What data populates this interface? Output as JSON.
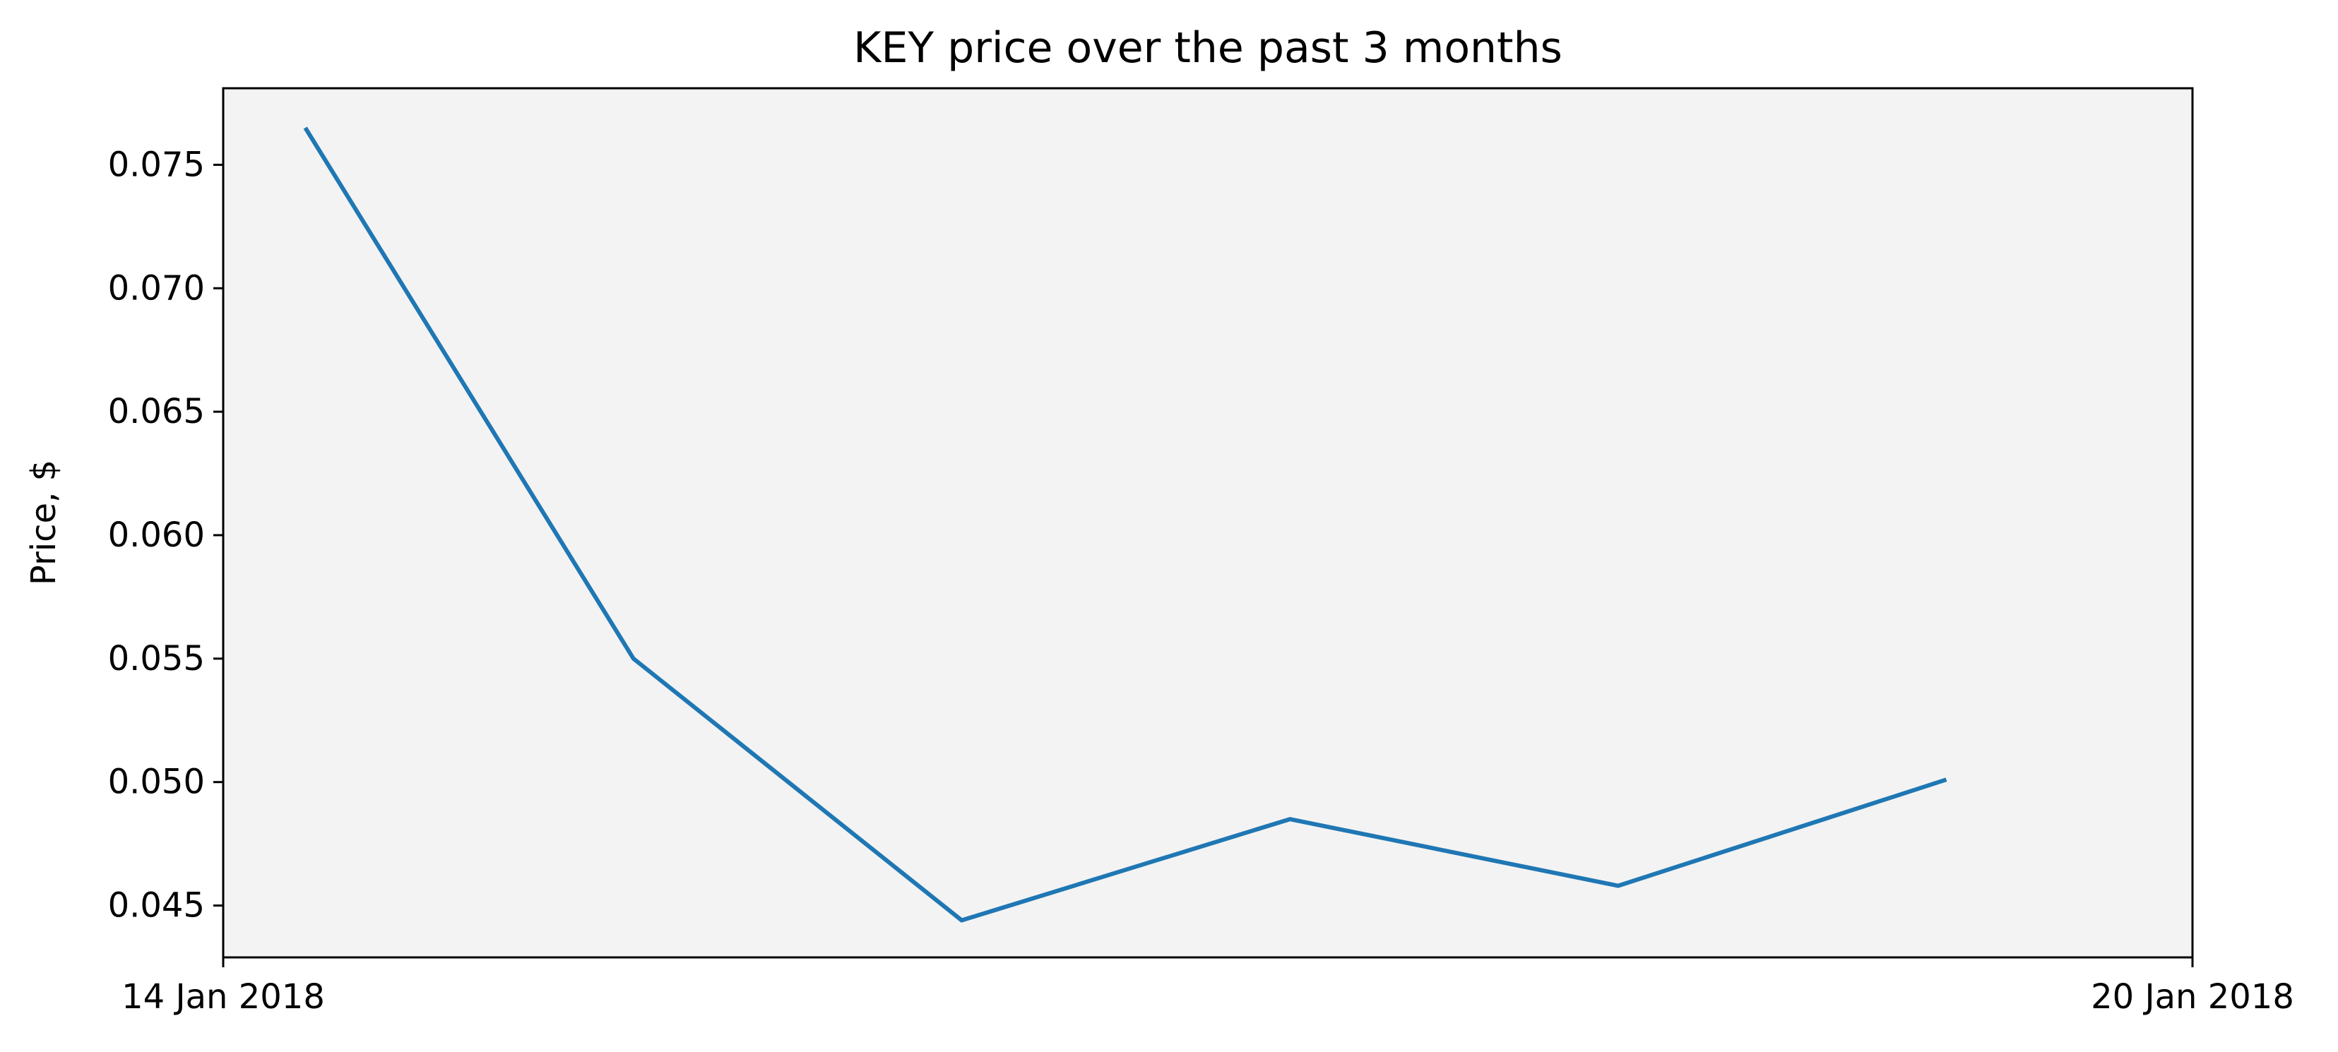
{
  "chart_data": {
    "type": "line",
    "title": "KEY price over the past 3 months",
    "xlabel": "",
    "ylabel": "Price, $",
    "x_tick_labels": [
      "14 Jan 2018",
      "20 Jan 2018"
    ],
    "x": [
      "2018-01-14",
      "2018-01-15",
      "2018-01-16",
      "2018-01-17",
      "2018-01-18",
      "2018-01-19"
    ],
    "xlim": [
      "2018-01-13T18:00",
      "2018-01-19T18:00"
    ],
    "y_ticks": [
      0.045,
      0.05,
      0.055,
      0.06,
      0.065,
      0.07,
      0.075
    ],
    "y_tick_labels": [
      "0.045",
      "0.050",
      "0.055",
      "0.060",
      "0.065",
      "0.070",
      "0.075"
    ],
    "ylim": [
      0.0429,
      0.0781
    ],
    "series": [
      {
        "values": [
          0.0765,
          0.055,
          0.0444,
          0.0485,
          0.0458,
          0.0501
        ]
      }
    ],
    "grid": false,
    "legend": "none",
    "colors": {
      "line": "#1f77b4",
      "plot_background": "#f3f3f3",
      "axes": "#000000"
    }
  }
}
